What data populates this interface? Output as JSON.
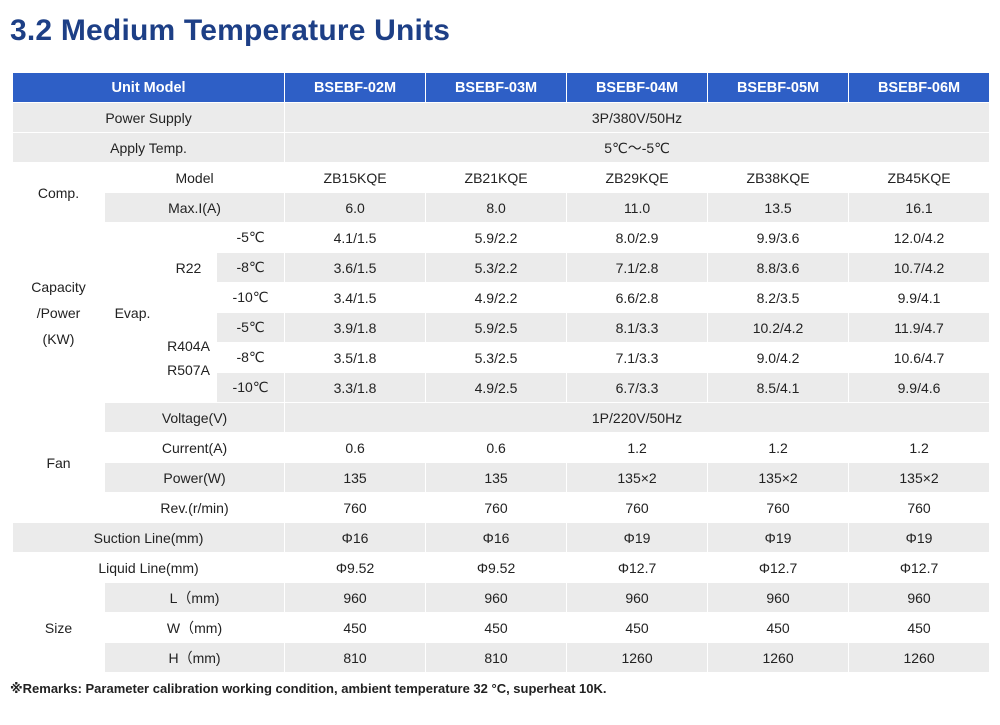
{
  "title": "3.2 Medium Temperature Units",
  "header": {
    "unit_model": "Unit Model",
    "models": [
      "BSEBF-02M",
      "BSEBF-03M",
      "BSEBF-04M",
      "BSEBF-05M",
      "BSEBF-06M"
    ]
  },
  "power_supply": {
    "label": "Power Supply",
    "value": "3P/380V/50Hz"
  },
  "apply_temp": {
    "label": "Apply Temp.",
    "value": "5℃～-5℃"
  },
  "comp": {
    "label": "Comp.",
    "model_label": "Model",
    "models": [
      "ZB15KQE",
      "ZB21KQE",
      "ZB29KQE",
      "ZB38KQE",
      "ZB45KQE"
    ],
    "maxi_label": "Max.I(A)",
    "maxi": [
      "6.0",
      "8.0",
      "11.0",
      "13.5",
      "16.1"
    ]
  },
  "capacity": {
    "label": [
      "Capacity",
      "/Power",
      "(KW)"
    ],
    "evap_label": "Evap.",
    "r22_label": "R22",
    "r404_label": [
      "R404A",
      "R507A"
    ],
    "temps": [
      "-5℃",
      "-8℃",
      "-10℃",
      "-5℃",
      "-8℃",
      "-10℃"
    ],
    "rows": [
      [
        "4.1/1.5",
        "5.9/2.2",
        "8.0/2.9",
        "9.9/3.6",
        "12.0/4.2"
      ],
      [
        "3.6/1.5",
        "5.3/2.2",
        "7.1/2.8",
        "8.8/3.6",
        "10.7/4.2"
      ],
      [
        "3.4/1.5",
        "4.9/2.2",
        "6.6/2.8",
        "8.2/3.5",
        "9.9/4.1"
      ],
      [
        "3.9/1.8",
        "5.9/2.5",
        "8.1/3.3",
        "10.2/4.2",
        "11.9/4.7"
      ],
      [
        "3.5/1.8",
        "5.3/2.5",
        "7.1/3.3",
        "9.0/4.2",
        "10.6/4.7"
      ],
      [
        "3.3/1.8",
        "4.9/2.5",
        "6.7/3.3",
        "8.5/4.1",
        "9.9/4.6"
      ]
    ]
  },
  "fan": {
    "label": "Fan",
    "voltage_label": "Voltage(V)",
    "voltage": "1P/220V/50Hz",
    "current_label": "Current(A)",
    "current": [
      "0.6",
      "0.6",
      "1.2",
      "1.2",
      "1.2"
    ],
    "power_label": "Power(W)",
    "power": [
      "135",
      "135",
      "135×2",
      "135×2",
      "135×2"
    ],
    "rev_label": "Rev.(r/min)",
    "rev": [
      "760",
      "760",
      "760",
      "760",
      "760"
    ]
  },
  "suction": {
    "label": "Suction Line(mm)",
    "values": [
      "Φ16",
      "Φ16",
      "Φ19",
      "Φ19",
      "Φ19"
    ]
  },
  "liquid": {
    "label": "Liquid Line(mm)",
    "values": [
      "Φ9.52",
      "Φ9.52",
      "Φ12.7",
      "Φ12.7",
      "Φ12.7"
    ]
  },
  "size": {
    "label": "Size",
    "l_label": "L（mm)",
    "l": [
      "960",
      "960",
      "960",
      "960",
      "960"
    ],
    "w_label": "W（mm)",
    "w": [
      "450",
      "450",
      "450",
      "450",
      "450"
    ],
    "h_label": "H（mm)",
    "h": [
      "810",
      "810",
      "1260",
      "1260",
      "1260"
    ]
  },
  "remarks": "※Remarks: Parameter calibration working condition, ambient temperature 32 °C, superheat 10K."
}
